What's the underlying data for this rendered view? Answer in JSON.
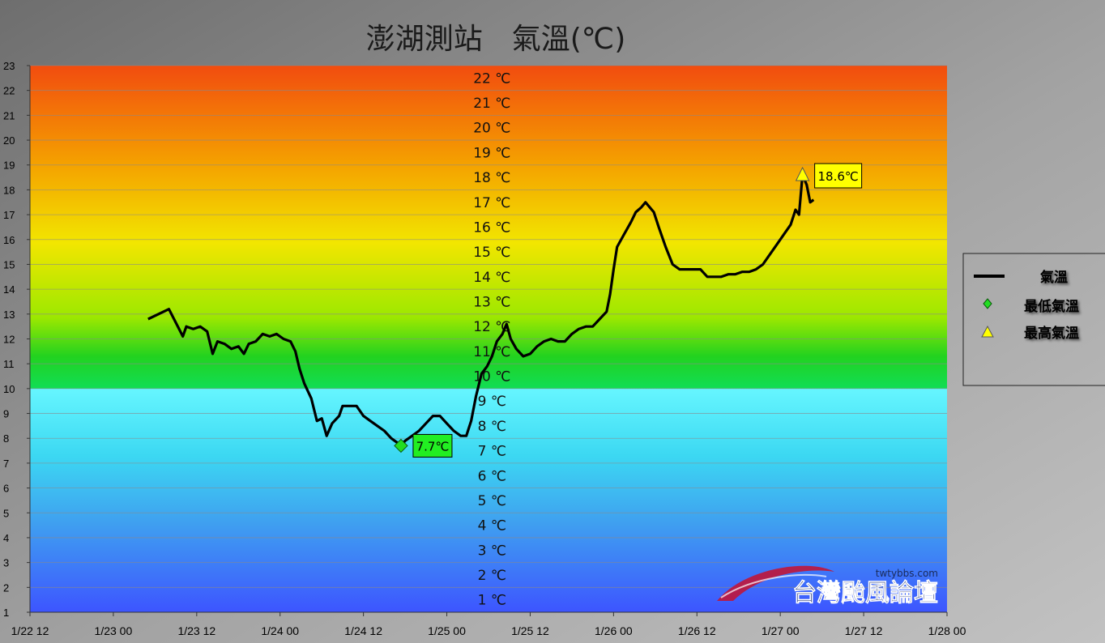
{
  "chart_data": {
    "type": "line",
    "title": "澎湖測站　氣溫(℃)",
    "ylim": [
      1,
      23
    ],
    "yticks": [
      1,
      2,
      3,
      4,
      5,
      6,
      7,
      8,
      9,
      10,
      11,
      12,
      13,
      14,
      15,
      16,
      17,
      18,
      19,
      20,
      21,
      22,
      23
    ],
    "xlim_hours": [
      0,
      132
    ],
    "x_tick_labels": [
      "1/22 12",
      "1/23 00",
      "1/23 12",
      "1/24 00",
      "1/24 12",
      "1/25 00",
      "1/25 12",
      "1/26 00",
      "1/26 12",
      "1/27 00",
      "1/27 12",
      "1/28 00"
    ],
    "band_labels": [
      "22 ℃",
      "21 ℃",
      "20 ℃",
      "19 ℃",
      "18 ℃",
      "17 ℃",
      "16 ℃",
      "15 ℃",
      "14 ℃",
      "13 ℃",
      "12 ℃",
      "11 ℃",
      "10 ℃",
      "9 ℃",
      "8 ℃",
      "7 ℃",
      "6 ℃",
      "5 ℃",
      "4 ℃",
      "3 ℃",
      "2 ℃",
      "1 ℃"
    ],
    "grid": true,
    "legend_position": "right",
    "series": [
      {
        "name": "氣溫",
        "color": "#000000",
        "points": [
          [
            17,
            12.8
          ],
          [
            20,
            13.2
          ],
          [
            22,
            12.1
          ],
          [
            22.5,
            12.5
          ],
          [
            23.5,
            12.4
          ],
          [
            24.5,
            12.5
          ],
          [
            25.5,
            12.3
          ],
          [
            26.3,
            11.4
          ],
          [
            27,
            11.9
          ],
          [
            28,
            11.8
          ],
          [
            29,
            11.6
          ],
          [
            30,
            11.7
          ],
          [
            30.8,
            11.4
          ],
          [
            31.5,
            11.8
          ],
          [
            32.5,
            11.9
          ],
          [
            33.5,
            12.2
          ],
          [
            34.5,
            12.1
          ],
          [
            35.5,
            12.2
          ],
          [
            36.5,
            12.0
          ],
          [
            37.5,
            11.9
          ],
          [
            38.2,
            11.5
          ],
          [
            38.8,
            10.8
          ],
          [
            39.5,
            10.2
          ],
          [
            40.5,
            9.6
          ],
          [
            41.3,
            8.7
          ],
          [
            42,
            8.8
          ],
          [
            42.7,
            8.1
          ],
          [
            43.5,
            8.6
          ],
          [
            44.5,
            8.9
          ],
          [
            45,
            9.3
          ],
          [
            46,
            9.3
          ],
          [
            47,
            9.3
          ],
          [
            48,
            8.9
          ],
          [
            49,
            8.7
          ],
          [
            50,
            8.5
          ],
          [
            51,
            8.3
          ],
          [
            52,
            8.0
          ],
          [
            53,
            7.8
          ],
          [
            53.4,
            7.7
          ],
          [
            54,
            7.9
          ],
          [
            55,
            8.1
          ],
          [
            56,
            8.3
          ],
          [
            57,
            8.6
          ],
          [
            58,
            8.9
          ],
          [
            59,
            8.9
          ],
          [
            60,
            8.6
          ],
          [
            61,
            8.3
          ],
          [
            62,
            8.1
          ],
          [
            62.8,
            8.1
          ],
          [
            63.5,
            8.7
          ],
          [
            64.2,
            9.7
          ],
          [
            65,
            10.6
          ],
          [
            65.8,
            10.9
          ],
          [
            66.5,
            11.3
          ],
          [
            67.2,
            11.9
          ],
          [
            68,
            12.2
          ],
          [
            68.6,
            12.6
          ],
          [
            69.2,
            12.0
          ],
          [
            70,
            11.6
          ],
          [
            71,
            11.3
          ],
          [
            72,
            11.4
          ],
          [
            73,
            11.7
          ],
          [
            74,
            11.9
          ],
          [
            75,
            12.0
          ],
          [
            76,
            11.9
          ],
          [
            77,
            11.9
          ],
          [
            78,
            12.2
          ],
          [
            79,
            12.4
          ],
          [
            80,
            12.5
          ],
          [
            81,
            12.5
          ],
          [
            82,
            12.8
          ],
          [
            83,
            13.1
          ],
          [
            83.5,
            13.8
          ],
          [
            84,
            14.8
          ],
          [
            84.5,
            15.7
          ],
          [
            85.5,
            16.2
          ],
          [
            86.5,
            16.7
          ],
          [
            87.2,
            17.1
          ],
          [
            88,
            17.3
          ],
          [
            88.6,
            17.5
          ],
          [
            89.2,
            17.3
          ],
          [
            89.8,
            17.1
          ],
          [
            90.5,
            16.5
          ],
          [
            91.5,
            15.7
          ],
          [
            92.5,
            15.0
          ],
          [
            93.5,
            14.8
          ],
          [
            94.5,
            14.8
          ],
          [
            95.5,
            14.8
          ],
          [
            96.5,
            14.8
          ],
          [
            97.5,
            14.5
          ],
          [
            98.5,
            14.5
          ],
          [
            99.5,
            14.5
          ],
          [
            100.5,
            14.6
          ],
          [
            101.5,
            14.6
          ],
          [
            102.5,
            14.7
          ],
          [
            103.5,
            14.7
          ],
          [
            104.5,
            14.8
          ],
          [
            105.5,
            15.0
          ],
          [
            106.5,
            15.4
          ],
          [
            107.5,
            15.8
          ],
          [
            108.5,
            16.2
          ],
          [
            109.5,
            16.6
          ],
          [
            110.2,
            17.2
          ],
          [
            110.7,
            17.0
          ],
          [
            111.2,
            18.6
          ],
          [
            111.8,
            18.2
          ],
          [
            112.3,
            17.5
          ],
          [
            112.8,
            17.6
          ]
        ]
      },
      {
        "name": "最低氣溫",
        "marker": "diamond",
        "color": "#22dd22",
        "points": [
          [
            53.4,
            7.7
          ]
        ],
        "label": "7.7℃"
      },
      {
        "name": "最高氣溫",
        "marker": "triangle",
        "color": "#ffff00",
        "points": [
          [
            111.2,
            18.6
          ]
        ],
        "label": "18.6℃"
      }
    ]
  },
  "logo": {
    "url": "twtybbs.com",
    "name": "台灣颱風論壇"
  },
  "colors": {
    "band_warm_top": "#f24c0f",
    "band_warm_bottom": "#11dd55",
    "band_cool_top": "#66f4ff",
    "band_cool_bottom": "#3d5aff"
  }
}
